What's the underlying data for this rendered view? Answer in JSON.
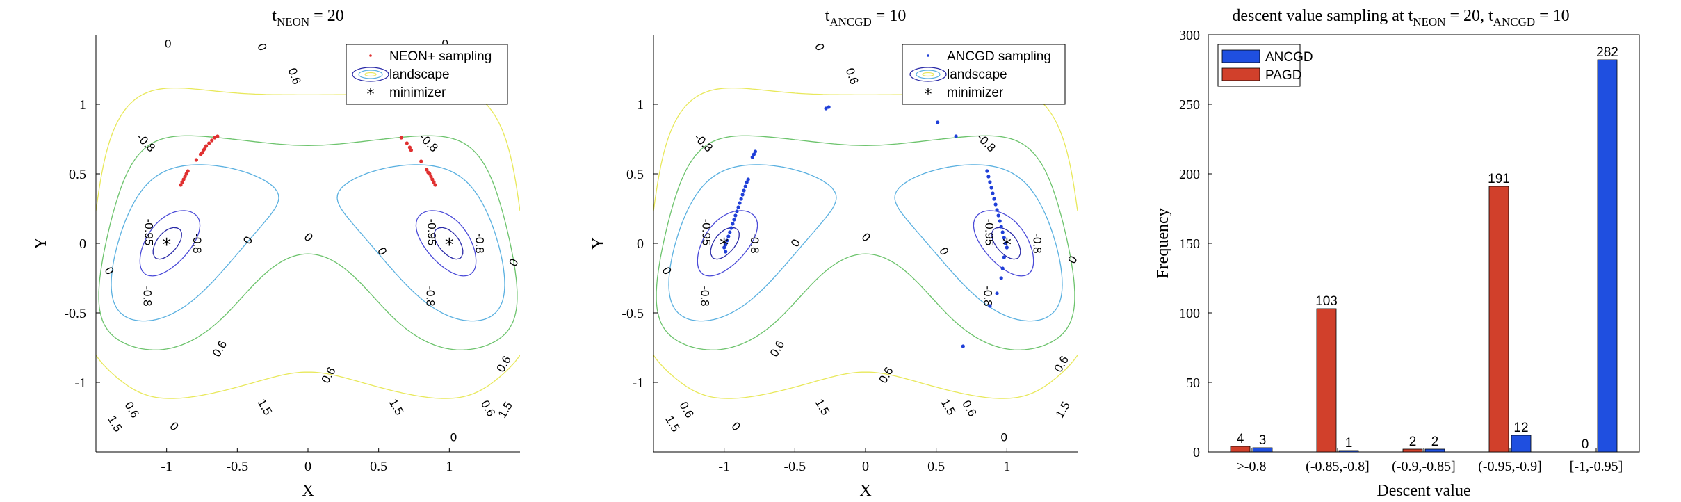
{
  "colors": {
    "ancgd": "#1f4fe0",
    "pagd": "#d1402b",
    "neon": "#e03030",
    "ancgd_points": "#1f3fd8",
    "contour_deep": "#2a2aa8",
    "contour_mid": "#4a4ad8",
    "contour_zero": "#5ab0e0",
    "contour_06": "#6cc36c",
    "contour_15": "#e8e85a"
  },
  "chart_data": [
    {
      "type": "scatter",
      "title": {
        "prefix": "t",
        "sub": "NEON",
        "suffix": " = 20"
      },
      "xlabel": "X",
      "ylabel": "Y",
      "xlim": [
        -1.5,
        1.5
      ],
      "ylim": [
        -1.5,
        1.5
      ],
      "xticks": [
        -1,
        -0.5,
        0,
        0.5,
        1
      ],
      "xtick_labels": [
        "-1",
        "-0.5",
        "0",
        "0.5",
        "1"
      ],
      "yticks": [
        -1,
        -0.5,
        0,
        0.5,
        1
      ],
      "ytick_labels": [
        "-1",
        "-0.5",
        "0",
        "0.5",
        "1"
      ],
      "legend": [
        "NEON+ sampling",
        "landscape",
        "minimizer"
      ],
      "legend_position": "top-right",
      "minimizers": [
        [
          -1,
          0
        ],
        [
          1,
          0
        ]
      ],
      "contour_labels": [
        {
          "text": "0",
          "x": -0.99,
          "y": 1.43,
          "rot": 0
        },
        {
          "text": "0",
          "x": -0.33,
          "y": 1.41,
          "rot": 70
        },
        {
          "text": "0.6",
          "x": -0.1,
          "y": 1.2,
          "rot": 70
        },
        {
          "text": "0",
          "x": 0.97,
          "y": 1.43,
          "rot": 0
        },
        {
          "text": "-0.8",
          "x": -1.15,
          "y": 0.72,
          "rot": 45
        },
        {
          "text": "-0.8",
          "x": 0.85,
          "y": 0.72,
          "rot": 45
        },
        {
          "text": "-0.95",
          "x": -1.13,
          "y": 0.08,
          "rot": 90
        },
        {
          "text": "-0.95",
          "x": 0.87,
          "y": 0.08,
          "rot": 90
        },
        {
          "text": "-0.8",
          "x": -0.79,
          "y": 0.0,
          "rot": 90
        },
        {
          "text": "-0.8",
          "x": 1.21,
          "y": 0.0,
          "rot": 90
        },
        {
          "text": "-0.8",
          "x": -1.14,
          "y": -0.38,
          "rot": 90
        },
        {
          "text": "-0.8",
          "x": 0.86,
          "y": -0.38,
          "rot": 90
        },
        {
          "text": "0",
          "x": 0.0,
          "y": 0.04,
          "rot": 45
        },
        {
          "text": "0",
          "x": -0.42,
          "y": 0.02,
          "rot": -60
        },
        {
          "text": "0",
          "x": 0.52,
          "y": -0.06,
          "rot": 60
        },
        {
          "text": "0",
          "x": -1.41,
          "y": -0.2,
          "rot": 60
        },
        {
          "text": "0",
          "x": 1.46,
          "y": -0.14,
          "rot": -60
        },
        {
          "text": "0.6",
          "x": -0.62,
          "y": -0.76,
          "rot": -60
        },
        {
          "text": "0.6",
          "x": 0.15,
          "y": -0.95,
          "rot": -60
        },
        {
          "text": "0.6",
          "x": 1.39,
          "y": -0.87,
          "rot": -60
        },
        {
          "text": "0.6",
          "x": -1.25,
          "y": -1.2,
          "rot": 60
        },
        {
          "text": "1.5",
          "x": -1.37,
          "y": -1.3,
          "rot": 60
        },
        {
          "text": "1.5",
          "x": -0.31,
          "y": -1.18,
          "rot": 60
        },
        {
          "text": "1.5",
          "x": 0.62,
          "y": -1.18,
          "rot": 60
        },
        {
          "text": "0",
          "x": -0.95,
          "y": -1.32,
          "rot": 45
        },
        {
          "text": "0.6",
          "x": 1.27,
          "y": -1.19,
          "rot": 60
        },
        {
          "text": "1.5",
          "x": 1.4,
          "y": -1.2,
          "rot": -60
        },
        {
          "text": "0",
          "x": 1.03,
          "y": -1.4,
          "rot": 0
        }
      ],
      "points": [
        [
          -0.9,
          0.42
        ],
        [
          -0.89,
          0.44
        ],
        [
          -0.88,
          0.46
        ],
        [
          -0.87,
          0.48
        ],
        [
          -0.86,
          0.5
        ],
        [
          -0.85,
          0.52
        ],
        [
          -0.79,
          0.6
        ],
        [
          -0.76,
          0.64
        ],
        [
          -0.74,
          0.67
        ],
        [
          -0.72,
          0.7
        ],
        [
          -0.7,
          0.72
        ],
        [
          -0.68,
          0.74
        ],
        [
          -0.66,
          0.76
        ],
        [
          -0.64,
          0.77
        ],
        [
          -0.75,
          0.65
        ],
        [
          -0.73,
          0.68
        ],
        [
          0.66,
          0.76
        ],
        [
          0.7,
          0.72
        ],
        [
          0.72,
          0.69
        ],
        [
          0.73,
          0.67
        ],
        [
          0.8,
          0.59
        ],
        [
          0.84,
          0.53
        ],
        [
          0.86,
          0.5
        ],
        [
          0.87,
          0.48
        ],
        [
          0.88,
          0.46
        ],
        [
          0.89,
          0.44
        ],
        [
          0.9,
          0.42
        ],
        [
          0.85,
          0.51
        ]
      ]
    },
    {
      "type": "scatter",
      "title": {
        "prefix": "t",
        "sub": "ANCGD",
        "suffix": " = 10"
      },
      "xlabel": "X",
      "ylabel": "Y",
      "xlim": [
        -1.5,
        1.5
      ],
      "ylim": [
        -1.5,
        1.5
      ],
      "xticks": [
        -1,
        -0.5,
        0,
        0.5,
        1
      ],
      "xtick_labels": [
        "-1",
        "-0.5",
        "0",
        "0.5",
        "1"
      ],
      "yticks": [
        -1,
        -0.5,
        0,
        0.5,
        1
      ],
      "ytick_labels": [
        "-1",
        "-0.5",
        "0",
        "0.5",
        "1"
      ],
      "legend": [
        "ANCGD sampling",
        "landscape",
        "minimizer"
      ],
      "legend_position": "top-right",
      "minimizers": [
        [
          -1,
          0
        ],
        [
          1,
          0
        ]
      ],
      "contour_labels": [
        {
          "text": "0",
          "x": -0.33,
          "y": 1.41,
          "rot": 70
        },
        {
          "text": "0.6",
          "x": -0.1,
          "y": 1.2,
          "rot": 70
        },
        {
          "text": "-0.8",
          "x": -1.15,
          "y": 0.72,
          "rot": 45
        },
        {
          "text": "-0.8",
          "x": 0.85,
          "y": 0.72,
          "rot": 45
        },
        {
          "text": "-0.95",
          "x": -1.13,
          "y": 0.08,
          "rot": 90
        },
        {
          "text": "-0.95",
          "x": 0.87,
          "y": 0.08,
          "rot": 90
        },
        {
          "text": "-0.8",
          "x": -0.79,
          "y": 0.0,
          "rot": 90
        },
        {
          "text": "-0.8",
          "x": 1.21,
          "y": 0.0,
          "rot": 90
        },
        {
          "text": "-0.8",
          "x": -1.14,
          "y": -0.38,
          "rot": 90
        },
        {
          "text": "-0.8",
          "x": 0.86,
          "y": -0.38,
          "rot": 90
        },
        {
          "text": "0",
          "x": 0.0,
          "y": 0.04,
          "rot": 45
        },
        {
          "text": "0",
          "x": -0.49,
          "y": 0.0,
          "rot": -60
        },
        {
          "text": "0",
          "x": 0.55,
          "y": -0.06,
          "rot": 60
        },
        {
          "text": "0",
          "x": -1.41,
          "y": -0.2,
          "rot": 60
        },
        {
          "text": "0",
          "x": 1.47,
          "y": -0.12,
          "rot": -60
        },
        {
          "text": "0.6",
          "x": -0.62,
          "y": -0.76,
          "rot": -60
        },
        {
          "text": "0.6",
          "x": 0.15,
          "y": -0.95,
          "rot": -60
        },
        {
          "text": "0.6",
          "x": 1.39,
          "y": -0.87,
          "rot": -60
        },
        {
          "text": "0.6",
          "x": -1.27,
          "y": -1.2,
          "rot": 60
        },
        {
          "text": "1.5",
          "x": -1.37,
          "y": -1.3,
          "rot": 60
        },
        {
          "text": "1.5",
          "x": -0.31,
          "y": -1.18,
          "rot": 60
        },
        {
          "text": "1.5",
          "x": 0.58,
          "y": -1.18,
          "rot": 60
        },
        {
          "text": "0.6",
          "x": 0.73,
          "y": -1.19,
          "rot": 60
        },
        {
          "text": "0",
          "x": -0.92,
          "y": -1.32,
          "rot": 45
        },
        {
          "text": "1.5",
          "x": 1.4,
          "y": -1.2,
          "rot": -60
        },
        {
          "text": "0",
          "x": 0.98,
          "y": -1.4,
          "rot": 0
        }
      ],
      "points": [
        [
          -0.28,
          0.97
        ],
        [
          -0.26,
          0.98
        ],
        [
          0.51,
          0.87
        ],
        [
          0.64,
          0.77
        ],
        [
          -0.78,
          0.66
        ],
        [
          -0.79,
          0.64
        ],
        [
          -0.8,
          0.62
        ],
        [
          -0.83,
          0.46
        ],
        [
          -0.84,
          0.44
        ],
        [
          -0.85,
          0.41
        ],
        [
          -0.86,
          0.38
        ],
        [
          -0.87,
          0.35
        ],
        [
          -0.88,
          0.32
        ],
        [
          -0.89,
          0.29
        ],
        [
          -0.9,
          0.26
        ],
        [
          -0.91,
          0.23
        ],
        [
          -0.92,
          0.2
        ],
        [
          -0.93,
          0.17
        ],
        [
          -0.94,
          0.14
        ],
        [
          -0.95,
          0.11
        ],
        [
          -0.96,
          0.08
        ],
        [
          -0.97,
          0.05
        ],
        [
          -0.98,
          0.02
        ],
        [
          -0.99,
          -0.01
        ],
        [
          -1.0,
          -0.03
        ],
        [
          -0.99,
          -0.06
        ],
        [
          0.86,
          0.52
        ],
        [
          0.87,
          0.48
        ],
        [
          0.88,
          0.44
        ],
        [
          0.89,
          0.4
        ],
        [
          0.9,
          0.36
        ],
        [
          0.91,
          0.32
        ],
        [
          0.92,
          0.28
        ],
        [
          0.93,
          0.24
        ],
        [
          0.94,
          0.2
        ],
        [
          0.95,
          0.16
        ],
        [
          0.96,
          0.12
        ],
        [
          0.97,
          0.08
        ],
        [
          0.98,
          0.04
        ],
        [
          0.99,
          0.0
        ],
        [
          1.0,
          -0.03
        ],
        [
          0.98,
          -0.1
        ],
        [
          0.97,
          -0.18
        ],
        [
          0.96,
          -0.25
        ],
        [
          0.93,
          -0.36
        ],
        [
          0.88,
          -0.45
        ],
        [
          0.69,
          -0.74
        ]
      ]
    },
    {
      "type": "bar",
      "title": {
        "prefix": "descent value sampling at t",
        "sub": "NEON",
        "mid": " = 20, t",
        "sub2": "ANCGD",
        "suffix": " = 10"
      },
      "xlabel": "Descent value",
      "ylabel": "Frequency",
      "ylim": [
        0,
        300
      ],
      "yticks": [
        0,
        50,
        100,
        150,
        200,
        250,
        300
      ],
      "ytick_labels": [
        "0",
        "50",
        "100",
        "150",
        "200",
        "250",
        "300"
      ],
      "legend_position": "top-left",
      "categories": [
        ">-0.8",
        "(-0.85,-0.8]",
        "(-0.9,-0.85]",
        "(-0.95,-0.9]",
        "[-1,-0.95]"
      ],
      "series": [
        {
          "name": "PAGD",
          "values": [
            4,
            103,
            2,
            191,
            0
          ],
          "labels": [
            "4",
            "103",
            "2",
            "191",
            "0"
          ]
        },
        {
          "name": "ANCGD",
          "values": [
            3,
            1,
            2,
            12,
            282
          ],
          "labels": [
            "3",
            "1",
            "2",
            "12",
            "282"
          ]
        }
      ],
      "legend_order": [
        "ANCGD",
        "PAGD"
      ]
    }
  ]
}
